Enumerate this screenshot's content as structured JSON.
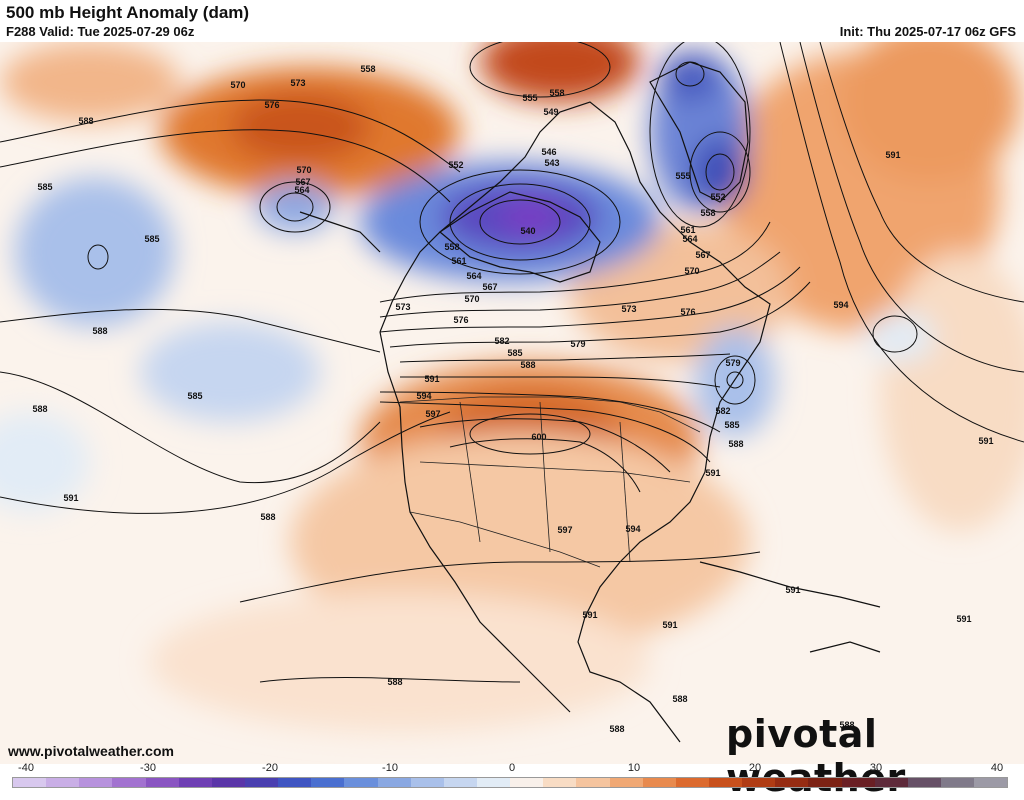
{
  "header": {
    "title": "500 mb Height Anomaly (dam)",
    "valid": "F288 Valid: Tue 2025-07-29 06z",
    "init": "Init: Thu 2025-07-17 06z GFS"
  },
  "footer": {
    "website": "www.pivotalweather.com",
    "brand": "pivotal weather"
  },
  "colorbar": {
    "ticks": [
      "-40",
      "-30",
      "-20",
      "-10",
      "0",
      "10",
      "20",
      "30",
      "40"
    ],
    "colors": [
      "#d8c8ee",
      "#c9aee6",
      "#b792dd",
      "#a272d0",
      "#8a55c2",
      "#6f3fb4",
      "#5a35a8",
      "#4a3fb0",
      "#3f55c2",
      "#4a6fd0",
      "#6a8fdc",
      "#8aa8e2",
      "#a9c0ea",
      "#c6d6f0",
      "#e2ecf6",
      "#f8f0ea",
      "#f8dcc4",
      "#f5c49e",
      "#f0a874",
      "#e88a4e",
      "#dc6a2e",
      "#c8501c",
      "#b03c14",
      "#962c12",
      "#7c2214",
      "#6a1f24",
      "#5e2a3a",
      "#665066",
      "#807a8a",
      "#9c9aa6"
    ]
  },
  "map": {
    "contour_labels": [
      "570",
      "573",
      "558",
      "576",
      "588",
      "555",
      "558",
      "549",
      "546",
      "543",
      "552",
      "570",
      "567",
      "564",
      "552",
      "555",
      "558",
      "591",
      "585",
      "585",
      "561",
      "564",
      "567",
      "570",
      "540",
      "558",
      "561",
      "564",
      "567",
      "570",
      "573",
      "576",
      "573",
      "576",
      "594",
      "588",
      "582",
      "585",
      "579",
      "588",
      "579",
      "582",
      "585",
      "588",
      "591",
      "594",
      "597",
      "600",
      "585",
      "588",
      "591",
      "591",
      "597",
      "594",
      "591",
      "591",
      "591",
      "591",
      "588",
      "591",
      "588",
      "588",
      "588",
      "588"
    ]
  }
}
